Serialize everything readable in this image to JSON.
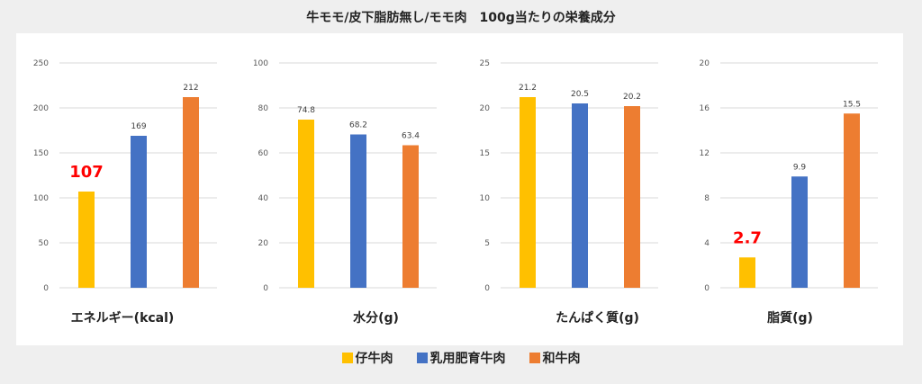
{
  "title": "牛モモ/皮下脂肪無し/モモ肉　100g当たりの栄養成分",
  "legend": [
    {
      "name": "仔牛肉",
      "color": "#ffc000"
    },
    {
      "name": "乳用肥育牛肉",
      "color": "#4472c4"
    },
    {
      "name": "和牛肉",
      "color": "#ed7d31"
    }
  ],
  "chart_data": [
    {
      "type": "bar",
      "title": "エネルギー(kcal)",
      "categories": [
        "仔牛肉",
        "乳用肥育牛肉",
        "和牛肉"
      ],
      "values": [
        107,
        169,
        212
      ],
      "labels": [
        "107",
        "169",
        "212"
      ],
      "highlight": [
        0
      ],
      "ylim": [
        0,
        250
      ],
      "ticks": [
        0,
        50,
        100,
        150,
        200,
        250
      ]
    },
    {
      "type": "bar",
      "title": "水分(g)",
      "categories": [
        "仔牛肉",
        "乳用肥育牛肉",
        "和牛肉"
      ],
      "values": [
        74.8,
        68.2,
        63.4
      ],
      "labels": [
        "74.8",
        "68.2",
        "63.4"
      ],
      "highlight": [],
      "ylim": [
        0,
        100
      ],
      "ticks": [
        0,
        20,
        40,
        60,
        80,
        100
      ]
    },
    {
      "type": "bar",
      "title": "たんぱく質(g)",
      "categories": [
        "仔牛肉",
        "乳用肥育牛肉",
        "和牛肉"
      ],
      "values": [
        21.2,
        20.5,
        20.2
      ],
      "labels": [
        "21.2",
        "20.5",
        "20.2"
      ],
      "highlight": [],
      "ylim": [
        0,
        25
      ],
      "ticks": [
        0,
        5,
        10,
        15,
        20,
        25
      ]
    },
    {
      "type": "bar",
      "title": "脂質(g)",
      "categories": [
        "仔牛肉",
        "乳用肥育牛肉",
        "和牛肉"
      ],
      "values": [
        2.7,
        9.9,
        15.5
      ],
      "labels": [
        "2.7",
        "9.9",
        "15.5"
      ],
      "highlight": [
        0
      ],
      "ylim": [
        0,
        20
      ],
      "ticks": [
        0,
        4,
        8,
        12,
        16,
        20
      ]
    }
  ],
  "highlight_color": "#ff0000"
}
